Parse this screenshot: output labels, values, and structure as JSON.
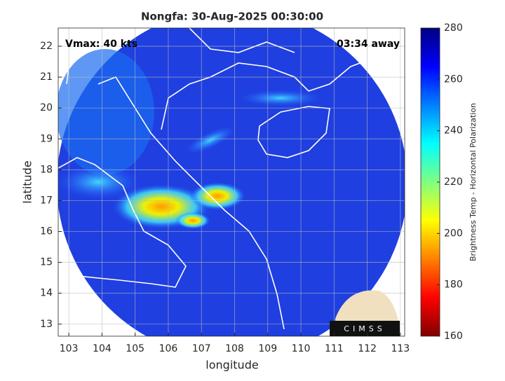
{
  "chart_data": {
    "type": "map",
    "title": "Nongfa: 30-Aug-2025 00:30:00",
    "annotations": [
      "Vmax: 40 kts",
      "03:34 away"
    ],
    "xlabel": "longitude",
    "ylabel": "latitude",
    "xlim": [
      102.68,
      113.13
    ],
    "xticks": [
      103,
      104,
      105,
      106,
      107,
      108,
      109,
      110,
      111,
      112,
      113
    ],
    "ylim": [
      12.61,
      22.59
    ],
    "yticks": [
      13,
      14,
      15,
      16,
      17,
      18,
      19,
      20,
      21,
      22
    ],
    "grid": true,
    "colorbar": {
      "label": "Brightness Temp - Horizontal Polarization",
      "lim": [
        160,
        280
      ],
      "ticks": [
        160,
        180,
        200,
        220,
        240,
        260,
        280
      ],
      "colormap": [
        "#800000",
        "#ff0000",
        "#ff8000",
        "#ffff00",
        "#80ff80",
        "#00ffff",
        "#0080ff",
        "#0000ff",
        "#000080"
      ]
    },
    "logo": "CIMSS"
  }
}
